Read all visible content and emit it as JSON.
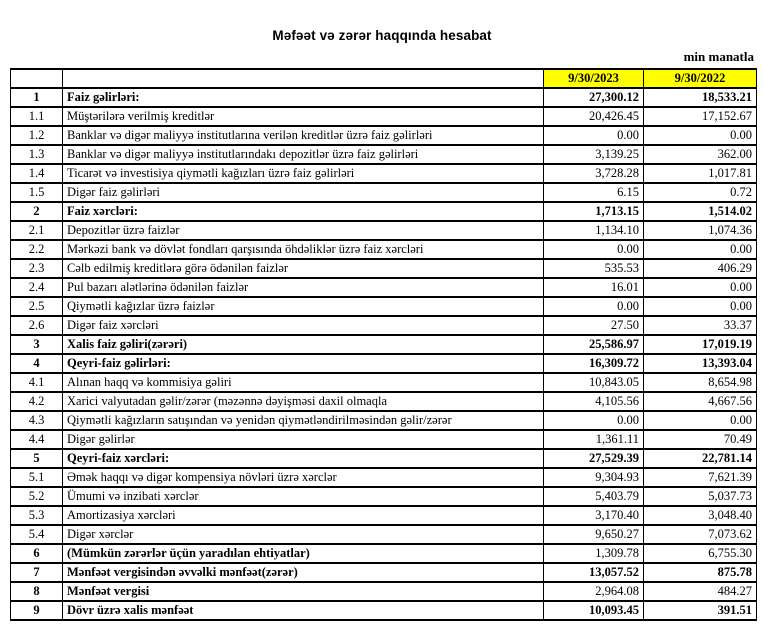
{
  "title": "Məfəət və zərər haqqında hesabat",
  "unit_note": "min manatla",
  "table": {
    "header_bg": "#FFFF00",
    "columns": [
      "",
      "",
      "9/30/2023",
      "9/30/2022"
    ],
    "rows": [
      {
        "num": "1",
        "label": "Faiz gəlirləri:",
        "v2023": "27,300.12",
        "v2022": "18,533.21",
        "bold_label": true,
        "bold_values": true
      },
      {
        "num": "1.1",
        "label": "Müştərilərə verilmiş kreditlər",
        "v2023": "20,426.45",
        "v2022": "17,152.67",
        "bold_label": false,
        "bold_values": false
      },
      {
        "num": "1.2",
        "label": "Banklar və digər maliyyə institutlarına verilən kreditlər üzrə faiz gəlirləri",
        "v2023": "0.00",
        "v2022": "0.00",
        "bold_label": false,
        "bold_values": false
      },
      {
        "num": "1.3",
        "label": "Banklar və digər maliyyə institutlarındakı depozitlər üzrə faiz gəlirləri",
        "v2023": "3,139.25",
        "v2022": "362.00",
        "bold_label": false,
        "bold_values": false
      },
      {
        "num": "1.4",
        "label": "Ticarət və investisiya qiymətli kağızları üzrə faiz gəlirləri",
        "v2023": "3,728.28",
        "v2022": "1,017.81",
        "bold_label": false,
        "bold_values": false
      },
      {
        "num": "1.5",
        "label": "Digər faiz gəlirləri",
        "v2023": "6.15",
        "v2022": "0.72",
        "bold_label": false,
        "bold_values": false
      },
      {
        "num": "2",
        "label": "Faiz xərcləri:",
        "v2023": "1,713.15",
        "v2022": "1,514.02",
        "bold_label": true,
        "bold_values": true
      },
      {
        "num": "2.1",
        "label": "Depozitlər üzrə faizlər",
        "v2023": "1,134.10",
        "v2022": "1,074.36",
        "bold_label": false,
        "bold_values": false
      },
      {
        "num": "2.2",
        "label": "Mərkəzi bank və dövlət fondları qarşısında öhdəliklər üzrə faiz xərcləri",
        "v2023": "0.00",
        "v2022": "0.00",
        "bold_label": false,
        "bold_values": false
      },
      {
        "num": "2.3",
        "label": "Cəlb edilmiş kreditlərə görə ödənilən faizlər",
        "v2023": "535.53",
        "v2022": "406.29",
        "bold_label": false,
        "bold_values": false
      },
      {
        "num": "2.4",
        "label": "Pul bazarı alətlərinə ödənilən faizlər",
        "v2023": "16.01",
        "v2022": "0.00",
        "bold_label": false,
        "bold_values": false
      },
      {
        "num": "2.5",
        "label": "Qiymətli kağızlar üzrə faizlər",
        "v2023": "0.00",
        "v2022": "0.00",
        "bold_label": false,
        "bold_values": false
      },
      {
        "num": "2.6",
        "label": "Digər faiz xərcləri",
        "v2023": "27.50",
        "v2022": "33.37",
        "bold_label": false,
        "bold_values": false
      },
      {
        "num": "3",
        "label": "Xalis faiz gəliri(zərəri)",
        "v2023": "25,586.97",
        "v2022": "17,019.19",
        "bold_label": true,
        "bold_values": true
      },
      {
        "num": "4",
        "label": "Qeyri-faiz gəlirləri:",
        "v2023": "16,309.72",
        "v2022": "13,393.04",
        "bold_label": true,
        "bold_values": true
      },
      {
        "num": "4.1",
        "label": "Alınan haqq və kommisiya gəliri",
        "v2023": "10,843.05",
        "v2022": "8,654.98",
        "bold_label": false,
        "bold_values": false
      },
      {
        "num": "4.2",
        "label": "Xarici valyutadan gəlir/zərər (məzənnə dəyişməsi daxil olmaqla",
        "v2023": "4,105.56",
        "v2022": "4,667.56",
        "bold_label": false,
        "bold_values": false
      },
      {
        "num": "4.3",
        "label": "Qiymətli kağızların satışından və yenidən qiymətləndirilməsindən gəlir/zərər",
        "v2023": "0.00",
        "v2022": "0.00",
        "bold_label": false,
        "bold_values": false
      },
      {
        "num": "4.4",
        "label": "Digər gəlirlər",
        "v2023": "1,361.11",
        "v2022": "70.49",
        "bold_label": false,
        "bold_values": false
      },
      {
        "num": "5",
        "label": "Qeyri-faiz xərcləri:",
        "v2023": "27,529.39",
        "v2022": "22,781.14",
        "bold_label": true,
        "bold_values": true
      },
      {
        "num": "5.1",
        "label": "Əmək haqqı və digər kompensiya növləri üzrə xərclər",
        "v2023": "9,304.93",
        "v2022": "7,621.39",
        "bold_label": false,
        "bold_values": false
      },
      {
        "num": "5.2",
        "label": "Ümumi və inzibati xərclər",
        "v2023": "5,403.79",
        "v2022": "5,037.73",
        "bold_label": false,
        "bold_values": false
      },
      {
        "num": "5.3",
        "label": "Amortizasiya xərcləri",
        "v2023": "3,170.40",
        "v2022": "3,048.40",
        "bold_label": false,
        "bold_values": false
      },
      {
        "num": "5.4",
        "label": "Digər xərclər",
        "v2023": "9,650.27",
        "v2022": "7,073.62",
        "bold_label": false,
        "bold_values": false
      },
      {
        "num": "6",
        "label": "(Mümkün zərərlər üçün yaradılan ehtiyatlar)",
        "v2023": "1,309.78",
        "v2022": "6,755.30",
        "bold_label": true,
        "bold_values": false
      },
      {
        "num": "7",
        "label": "Mənfəət vergisindən əvvəlki mənfəət(zərər)",
        "v2023": "13,057.52",
        "v2022": "875.78",
        "bold_label": true,
        "bold_values": true
      },
      {
        "num": "8",
        "label": "Mənfəət vergisi",
        "v2023": "2,964.08",
        "v2022": "484.27",
        "bold_label": true,
        "bold_values": false
      },
      {
        "num": "9",
        "label": "Dövr üzrə xalis mənfəət",
        "v2023": "10,093.45",
        "v2022": "391.51",
        "bold_label": true,
        "bold_values": true
      }
    ]
  }
}
